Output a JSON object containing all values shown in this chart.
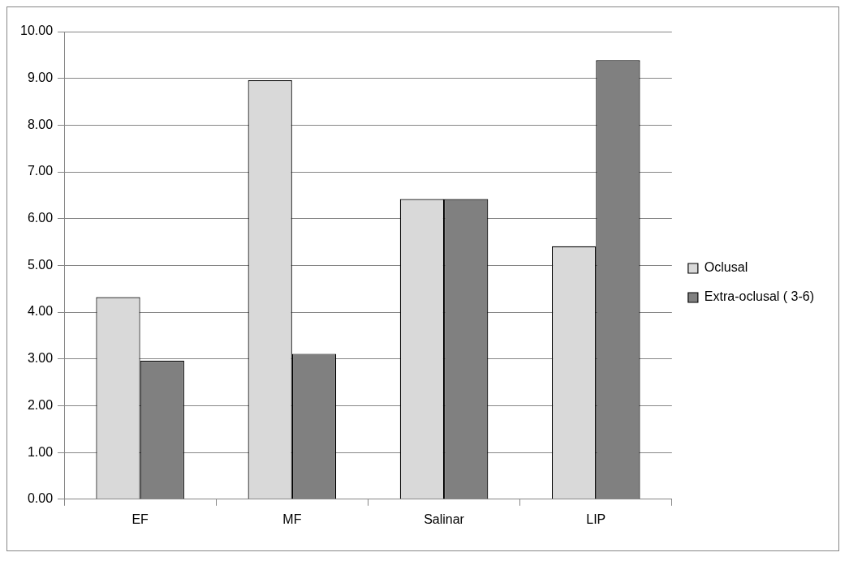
{
  "chart_data": {
    "type": "bar",
    "categories": [
      "EF",
      "MF",
      "Salinar",
      "LIP"
    ],
    "series": [
      {
        "name": "Oclusal",
        "color": "#d9d9d9",
        "values": [
          4.32,
          8.96,
          6.42,
          5.41
        ]
      },
      {
        "name": "Extra-oclusal ( 3-6)",
        "color": "#808080",
        "values": [
          2.96,
          3.11,
          6.42,
          9.39
        ]
      }
    ],
    "ylim": [
      0,
      10
    ],
    "yticks": [
      {
        "value": 0,
        "label": "0.00"
      },
      {
        "value": 1,
        "label": "1.00"
      },
      {
        "value": 2,
        "label": "2.00"
      },
      {
        "value": 3,
        "label": "3.00"
      },
      {
        "value": 4,
        "label": "4.00"
      },
      {
        "value": 5,
        "label": "5.00"
      },
      {
        "value": 6,
        "label": "6.00"
      },
      {
        "value": 7,
        "label": "7.00"
      },
      {
        "value": 8,
        "label": "8.00"
      },
      {
        "value": 9,
        "label": "9.00"
      },
      {
        "value": 10,
        "label": "10.00"
      }
    ],
    "grid": "y",
    "legend": "right"
  }
}
